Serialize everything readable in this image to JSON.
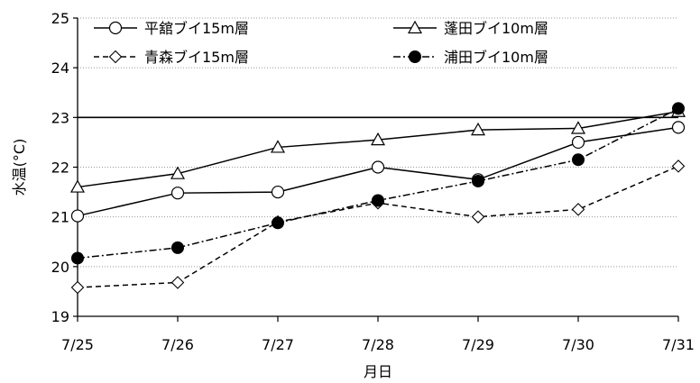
{
  "chart_data": {
    "type": "line",
    "title": "",
    "xlabel": "月日",
    "ylabel": "水温(°C)",
    "categories": [
      "7/25",
      "7/26",
      "7/27",
      "7/28",
      "7/29",
      "7/30",
      "7/31"
    ],
    "ylim": [
      19,
      25
    ],
    "yticks": [
      19,
      20,
      21,
      22,
      23,
      24,
      25
    ],
    "grid": "horizontal dotted",
    "legend_placement": "top, two columns",
    "reference_line": {
      "value": 23
    },
    "series": [
      {
        "name": "平舘ブイ15m層",
        "marker": "open-circle",
        "dash": "solid",
        "color": "#000000",
        "values": [
          21.02,
          21.48,
          21.5,
          22.0,
          21.75,
          22.5,
          22.8
        ]
      },
      {
        "name": "蓬田ブイ10m層",
        "marker": "open-triangle",
        "dash": "solid",
        "color": "#000000",
        "values": [
          21.6,
          21.87,
          22.4,
          22.55,
          22.75,
          22.78,
          23.12
        ]
      },
      {
        "name": "青森ブイ15m層",
        "marker": "open-diamond",
        "dash": "dashed",
        "color": "#000000",
        "values": [
          19.58,
          19.68,
          20.9,
          21.28,
          21.0,
          21.15,
          22.02
        ]
      },
      {
        "name": "浦田ブイ10m層",
        "marker": "filled-circle",
        "dash": "dash-dot",
        "color": "#000000",
        "values": [
          20.17,
          20.38,
          20.88,
          21.33,
          21.72,
          22.15,
          23.18
        ]
      }
    ]
  }
}
